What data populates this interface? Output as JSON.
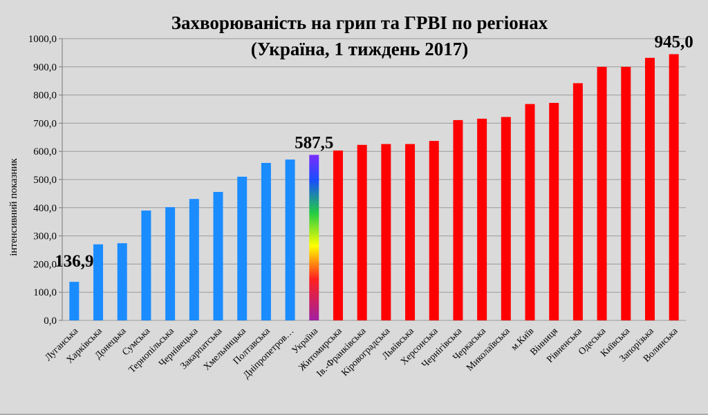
{
  "chart_data": {
    "type": "bar",
    "title": "Захворюваність на грип та ГРВІ по регіонах",
    "subtitle": "(Україна, 1 тиждень 2017)",
    "ylabel": "інтенсивний показник",
    "xlabel": "",
    "ylim": [
      0,
      1000
    ],
    "yticks": [
      "0,0",
      "100,0",
      "200,0",
      "300,0",
      "400,0",
      "500,0",
      "600,0",
      "700,0",
      "800,0",
      "900,0",
      "1000,0"
    ],
    "grid": true,
    "categories": [
      "Луганська",
      "Харківська",
      "Донецька",
      "Сумська",
      "Тернопільська",
      "Чернівецька",
      "Закарпатська",
      "Хмельницька",
      "Полтавська",
      "Дніпропетров…",
      "Україна",
      "Житомирська",
      "Ів.-Франківська",
      "Кіровоградська",
      "Львівська",
      "Херсонська",
      "Чернігівська",
      "Черкаська",
      "Миколаївська",
      "м.Київ",
      "Вінниця",
      "Рівненська",
      "Одеська",
      "Київська",
      "Запорізька",
      "Волинська"
    ],
    "values": [
      136.9,
      270,
      274,
      390,
      402,
      431,
      456,
      510,
      559,
      571,
      587.5,
      603,
      623,
      626,
      626,
      637,
      711,
      716,
      722,
      768,
      772,
      842,
      900,
      900,
      932,
      945.0
    ],
    "colors": {
      "below": "#1a8cff",
      "above": "#ff0000",
      "ukraine": "rainbow"
    },
    "annotations": [
      {
        "category": "Луганська",
        "text": "136,9"
      },
      {
        "category": "Україна",
        "text": "587,5"
      },
      {
        "category": "Волинська",
        "text": "945,0"
      }
    ]
  }
}
